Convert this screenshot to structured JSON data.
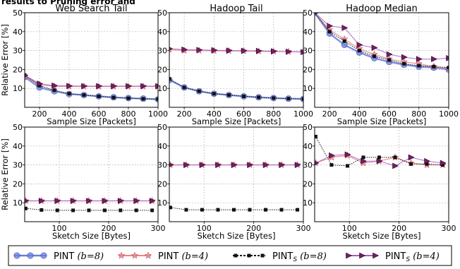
{
  "header_fragment": "results to Pruning error and",
  "legend": [
    {
      "label": "PINT",
      "param": "(b=8)",
      "marker": "circle"
    },
    {
      "label": "PINT",
      "param": "(b=4)",
      "marker": "star"
    },
    {
      "label": "PINT",
      "sub": "S",
      "param": "(b=8)",
      "marker": "square"
    },
    {
      "label": "PINT",
      "sub": "S",
      "param": "(b=4)",
      "marker": "triangle"
    }
  ],
  "colors": {
    "pint_b8": "#6a7fdb",
    "pint_b4": "#e8868a",
    "pints_b8": "#111111",
    "pints_b4": "#a060c0",
    "tri_fill": "#7a1a6a",
    "grid": "#b8b8b8"
  },
  "chart_data": [
    {
      "type": "line",
      "title": "Web Search Tail",
      "xlabel": "Sample Size [Packets]",
      "ylabel": "Relative Error [%]",
      "xlim": [
        100,
        1000
      ],
      "ylim": [
        0,
        50
      ],
      "xticks": [
        200,
        400,
        600,
        800,
        1000
      ],
      "yticks": [
        10,
        20,
        30,
        40,
        50
      ],
      "grid": true,
      "x": [
        100,
        200,
        300,
        400,
        500,
        600,
        700,
        800,
        900,
        1000
      ],
      "series": [
        {
          "key": "pint_b8",
          "values": [
            16,
            10.5,
            8.5,
            7,
            6.5,
            5.8,
            5.3,
            4.9,
            4.6,
            4.2
          ]
        },
        {
          "key": "pint_b4",
          "values": [
            16.5,
            12,
            11,
            11,
            11,
            11,
            11,
            11,
            11,
            11
          ]
        },
        {
          "key": "pints_b8",
          "values": [
            17,
            11.5,
            9,
            7.2,
            6.5,
            5.8,
            5.2,
            4.8,
            4.5,
            4.3
          ]
        },
        {
          "key": "pints_b4",
          "values": [
            17,
            12.5,
            11.5,
            11.3,
            11.2,
            11.2,
            11.2,
            11.2,
            11.2,
            11.2
          ]
        }
      ]
    },
    {
      "type": "line",
      "title": "Hadoop Tail",
      "xlabel": "Sample Size [Packets]",
      "ylabel": "",
      "xlim": [
        100,
        1000
      ],
      "ylim": [
        0,
        50
      ],
      "xticks": [
        200,
        400,
        600,
        800,
        1000
      ],
      "yticks": [
        10,
        20,
        30,
        40,
        50
      ],
      "grid": true,
      "x": [
        100,
        200,
        300,
        400,
        500,
        600,
        700,
        800,
        900,
        1000
      ],
      "series": [
        {
          "key": "pint_b8",
          "values": [
            14.5,
            10.5,
            8.5,
            7.2,
            6.5,
            5.8,
            5.3,
            4.9,
            4.6,
            4.4
          ]
        },
        {
          "key": "pint_b4",
          "values": [
            30.5,
            30,
            30,
            29.8,
            29.8,
            29.7,
            29.6,
            29.5,
            29.4,
            29.3
          ]
        },
        {
          "key": "pints_b8",
          "values": [
            15,
            10.5,
            8.5,
            7.2,
            6.5,
            5.8,
            5.3,
            4.9,
            4.6,
            4.4
          ]
        },
        {
          "key": "pints_b4",
          "values": [
            31,
            30.5,
            30.3,
            30.2,
            30,
            29.9,
            29.8,
            29.6,
            29.4,
            29.2
          ]
        }
      ]
    },
    {
      "type": "line",
      "title": "Hadoop Median",
      "xlabel": "Sample Size [Packets]",
      "ylabel": "",
      "xlim": [
        100,
        1000
      ],
      "ylim": [
        0,
        50
      ],
      "xticks": [
        200,
        400,
        600,
        800,
        1000
      ],
      "yticks": [
        10,
        20,
        30,
        40,
        50
      ],
      "grid": true,
      "x": [
        100,
        200,
        300,
        400,
        500,
        600,
        700,
        800,
        900,
        1000
      ],
      "series": [
        {
          "key": "pint_b8",
          "values": [
            50,
            39,
            33,
            29,
            26,
            24,
            22.5,
            21.5,
            21,
            20
          ]
        },
        {
          "key": "pint_b4",
          "values": [
            50,
            41,
            36,
            31,
            28,
            25.5,
            24,
            23,
            21.5,
            20.5
          ]
        },
        {
          "key": "pints_b8",
          "values": [
            50,
            40,
            35,
            30,
            27,
            25,
            23,
            22,
            21.5,
            21
          ]
        },
        {
          "key": "pints_b4",
          "values": [
            50,
            43,
            42,
            33,
            31.5,
            28,
            26.5,
            25.5,
            25.5,
            26
          ]
        }
      ]
    },
    {
      "type": "line",
      "title": "",
      "xlabel": "Sketch Size [Bytes]",
      "ylabel": "Relative Error [%]",
      "xlim": [
        30,
        300
      ],
      "ylim": [
        0,
        50
      ],
      "xticks": [
        100,
        200,
        300
      ],
      "yticks": [
        10,
        20,
        30,
        40,
        50
      ],
      "grid": true,
      "x": [
        32,
        64,
        96,
        128,
        160,
        192,
        224,
        256,
        288
      ],
      "series": [
        {
          "key": "pint_b4",
          "values": [
            11,
            11,
            11,
            11,
            11,
            11,
            11,
            11,
            11
          ]
        },
        {
          "key": "pints_b8",
          "values": [
            7,
            6.2,
            6,
            6,
            6,
            6,
            6,
            6,
            6
          ]
        },
        {
          "key": "pints_b4",
          "values": [
            11,
            11,
            11,
            11,
            11,
            11,
            11,
            11,
            11
          ]
        }
      ]
    },
    {
      "type": "line",
      "title": "",
      "xlabel": "Sketch Size [Bytes]",
      "ylabel": "",
      "xlim": [
        30,
        300
      ],
      "ylim": [
        0,
        50
      ],
      "xticks": [
        100,
        200,
        300
      ],
      "yticks": [
        10,
        20,
        30,
        40,
        50
      ],
      "grid": true,
      "x": [
        32,
        64,
        96,
        128,
        160,
        192,
        224,
        256,
        288
      ],
      "series": [
        {
          "key": "pint_b4",
          "values": [
            30,
            30,
            30,
            30,
            30,
            30,
            30,
            30,
            30
          ]
        },
        {
          "key": "pints_b8",
          "values": [
            7.5,
            6.3,
            6.3,
            6.3,
            6.3,
            6.3,
            6.3,
            6.3,
            6.3
          ]
        },
        {
          "key": "pints_b4",
          "values": [
            30,
            30,
            30,
            30,
            30,
            30,
            30,
            30,
            30
          ]
        }
      ]
    },
    {
      "type": "line",
      "title": "",
      "xlabel": "Sketch Size [Bytes]",
      "ylabel": "",
      "xlim": [
        30,
        300
      ],
      "ylim": [
        0,
        50
      ],
      "xticks": [
        100,
        200,
        300
      ],
      "yticks": [
        10,
        20,
        30,
        40,
        50
      ],
      "grid": true,
      "x": [
        32,
        64,
        96,
        128,
        160,
        192,
        224,
        256,
        288
      ],
      "series": [
        {
          "key": "pint_b4",
          "values": [
            31,
            34,
            35,
            31,
            32,
            34,
            31,
            30,
            30
          ]
        },
        {
          "key": "pints_b8",
          "values": [
            45,
            30,
            29.5,
            34,
            34,
            34,
            30.5,
            30.5,
            30
          ]
        },
        {
          "key": "pints_b4",
          "values": [
            31,
            35,
            35.5,
            32,
            32,
            29.5,
            34,
            32,
            31
          ]
        }
      ]
    }
  ]
}
